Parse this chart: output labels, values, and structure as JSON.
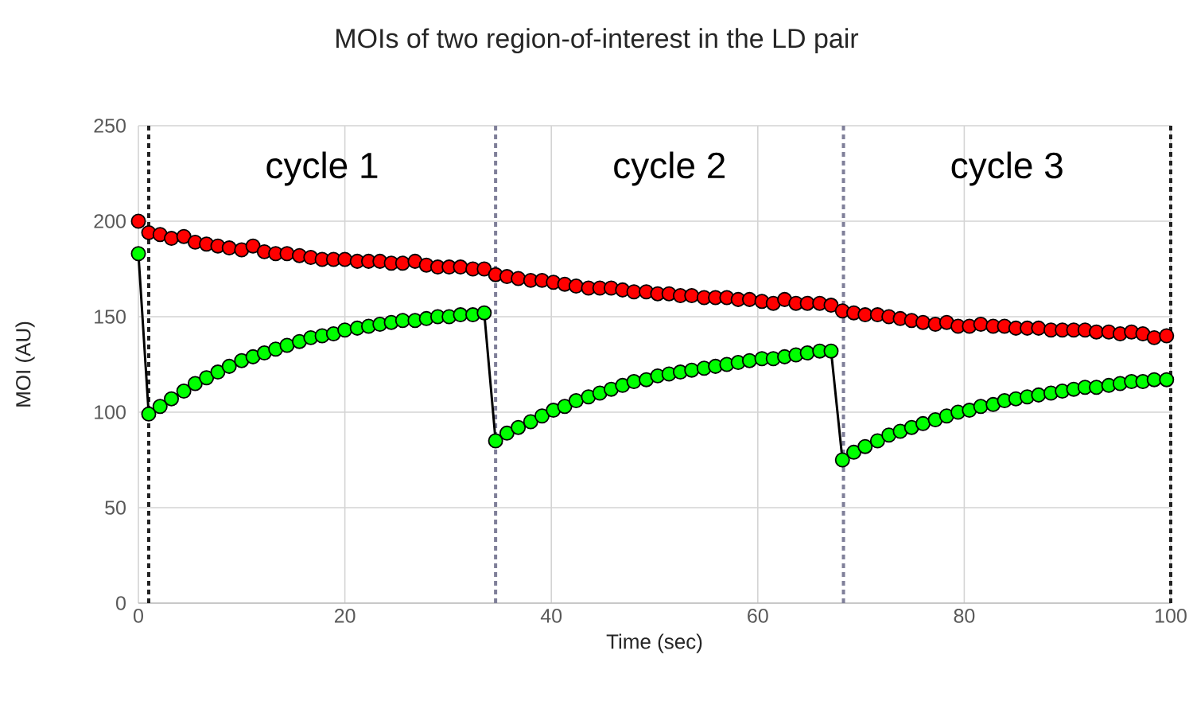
{
  "chart_data": {
    "type": "line",
    "title": "MOIs of two region-of-interest  in the LD pair",
    "xlabel": "Time (sec)",
    "ylabel": "MOI (AU)",
    "x": [
      0,
      1.0,
      2.1,
      3.2,
      4.4,
      5.5,
      6.6,
      7.7,
      8.8,
      10.0,
      11.1,
      12.2,
      13.3,
      14.4,
      15.6,
      16.7,
      17.8,
      18.9,
      20.0,
      21.2,
      22.3,
      23.4,
      24.5,
      25.6,
      26.8,
      27.9,
      29.0,
      30.1,
      31.2,
      32.4,
      33.5,
      34.6,
      35.7,
      36.8,
      38.0,
      39.1,
      40.2,
      41.3,
      42.4,
      43.6,
      44.7,
      45.8,
      46.9,
      48.0,
      49.2,
      50.3,
      51.4,
      52.5,
      53.6,
      54.8,
      55.9,
      57.0,
      58.1,
      59.2,
      60.4,
      61.5,
      62.6,
      63.7,
      64.8,
      66.0,
      67.1,
      68.2,
      69.3,
      70.4,
      71.6,
      72.7,
      73.8,
      74.9,
      76.0,
      77.2,
      78.3,
      79.4,
      80.5,
      81.6,
      82.8,
      83.9,
      85.0,
      86.1,
      87.2,
      88.4,
      89.5,
      90.6,
      91.7,
      92.8,
      94.0,
      95.1,
      96.2,
      97.3,
      98.4,
      99.6
    ],
    "series": [
      {
        "type": "scatter",
        "color": "#ff0000",
        "values": [
          200,
          194,
          193,
          191,
          192,
          189,
          188,
          187,
          186,
          185,
          187,
          184,
          183,
          183,
          182,
          181,
          180,
          180,
          180,
          179,
          179,
          179,
          178,
          178,
          179,
          177,
          176,
          176,
          176,
          175,
          175,
          172,
          171,
          170,
          169,
          169,
          168,
          167,
          166,
          165,
          165,
          165,
          164,
          163,
          163,
          162,
          162,
          161,
          161,
          160,
          160,
          160,
          159,
          159,
          158,
          157,
          159,
          157,
          157,
          157,
          156,
          153,
          152,
          151,
          151,
          150,
          149,
          148,
          147,
          146,
          147,
          145,
          145,
          146,
          145,
          145,
          144,
          144,
          144,
          143,
          143,
          143,
          143,
          142,
          142,
          141,
          142,
          141,
          139,
          140
        ]
      },
      {
        "color": "#00ff00",
        "values": [
          183,
          99,
          103,
          107,
          111,
          115,
          118,
          121,
          124,
          127,
          129,
          131,
          133,
          135,
          137,
          139,
          140,
          141,
          143,
          144,
          145,
          146,
          147,
          148,
          148,
          149,
          150,
          150,
          151,
          151,
          152,
          85,
          89,
          92,
          95,
          98,
          101,
          103,
          106,
          108,
          110,
          112,
          114,
          116,
          117,
          119,
          120,
          121,
          122,
          123,
          124,
          125,
          126,
          127,
          128,
          128,
          129,
          130,
          131,
          132,
          132,
          75,
          79,
          82,
          85,
          88,
          90,
          92,
          94,
          96,
          98,
          100,
          101,
          103,
          104,
          106,
          107,
          108,
          109,
          110,
          111,
          112,
          113,
          113,
          114,
          115,
          116,
          116,
          117,
          117
        ]
      }
    ],
    "xlim": [
      0,
      100
    ],
    "ylim": [
      0,
      250
    ],
    "xticks": [
      0,
      20,
      40,
      60,
      80,
      100
    ],
    "yticks": [
      0,
      50,
      100,
      150,
      200,
      250
    ],
    "grid": true,
    "marker": "circle",
    "ref_lines": [
      {
        "axis": "x",
        "value": 1,
        "color": "#222222",
        "line_style": "dashed"
      },
      {
        "axis": "x",
        "value": 34.6,
        "color": "#7f7f99",
        "line_style": "dashed"
      },
      {
        "axis": "x",
        "value": 68.3,
        "color": "#7f7f99",
        "line_style": "dashed"
      },
      {
        "axis": "x",
        "value": 100,
        "color": "#222222",
        "line_style": "dashed"
      }
    ],
    "annotations": [
      "cycle 1",
      "cycle 2",
      "cycle 3"
    ]
  }
}
